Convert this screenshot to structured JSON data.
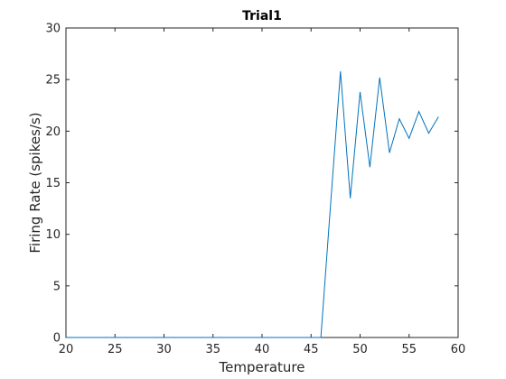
{
  "chart_data": {
    "type": "line",
    "title": "Trial1",
    "xlabel": "Temperature",
    "ylabel": "Firing Rate (spikes/s)",
    "xlim": [
      20,
      60
    ],
    "ylim": [
      0,
      30
    ],
    "xticks": [
      "20",
      "25",
      "30",
      "35",
      "40",
      "45",
      "50",
      "55",
      "60"
    ],
    "yticks": [
      "0",
      "5",
      "10",
      "15",
      "20",
      "25",
      "30"
    ],
    "grid": false,
    "series": [
      {
        "color": "#0072BD",
        "x": [
          20,
          21,
          22,
          23,
          24,
          25,
          26,
          27,
          28,
          29,
          30,
          31,
          32,
          33,
          34,
          35,
          36,
          37,
          38,
          39,
          40,
          41,
          42,
          43,
          44,
          45,
          46,
          47,
          48,
          49,
          50,
          51,
          52,
          53,
          54,
          55,
          56,
          57,
          58
        ],
        "y": [
          0,
          0,
          0,
          0,
          0,
          0,
          0,
          0,
          0,
          0,
          0,
          0,
          0,
          0,
          0,
          0,
          0,
          0,
          0,
          0,
          0,
          0,
          0,
          0,
          0,
          0,
          0,
          13.0,
          25.8,
          13.5,
          23.8,
          16.5,
          25.2,
          17.9,
          21.2,
          19.3,
          21.9,
          19.8,
          21.4
        ]
      }
    ]
  }
}
